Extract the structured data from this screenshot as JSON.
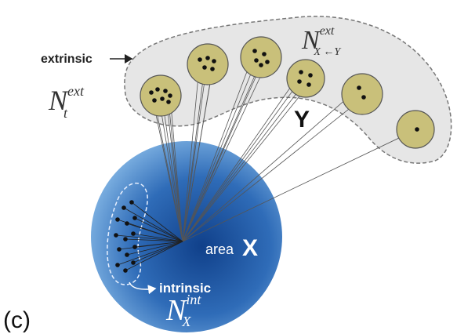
{
  "panel_label": "(c)",
  "labels": {
    "extrinsic": "extrinsic",
    "intrinsic": "intrinsic",
    "area": "area",
    "area_name": "X",
    "group_name": "Y"
  },
  "math": {
    "n_t_ext": {
      "base": "N",
      "sup": "ext",
      "sub": "t"
    },
    "n_xy_ext": {
      "base": "N",
      "sup": "ext",
      "sub": "X ←Y"
    },
    "n_x_int": {
      "base": "N",
      "sup": "int",
      "sub": "X"
    }
  }
}
